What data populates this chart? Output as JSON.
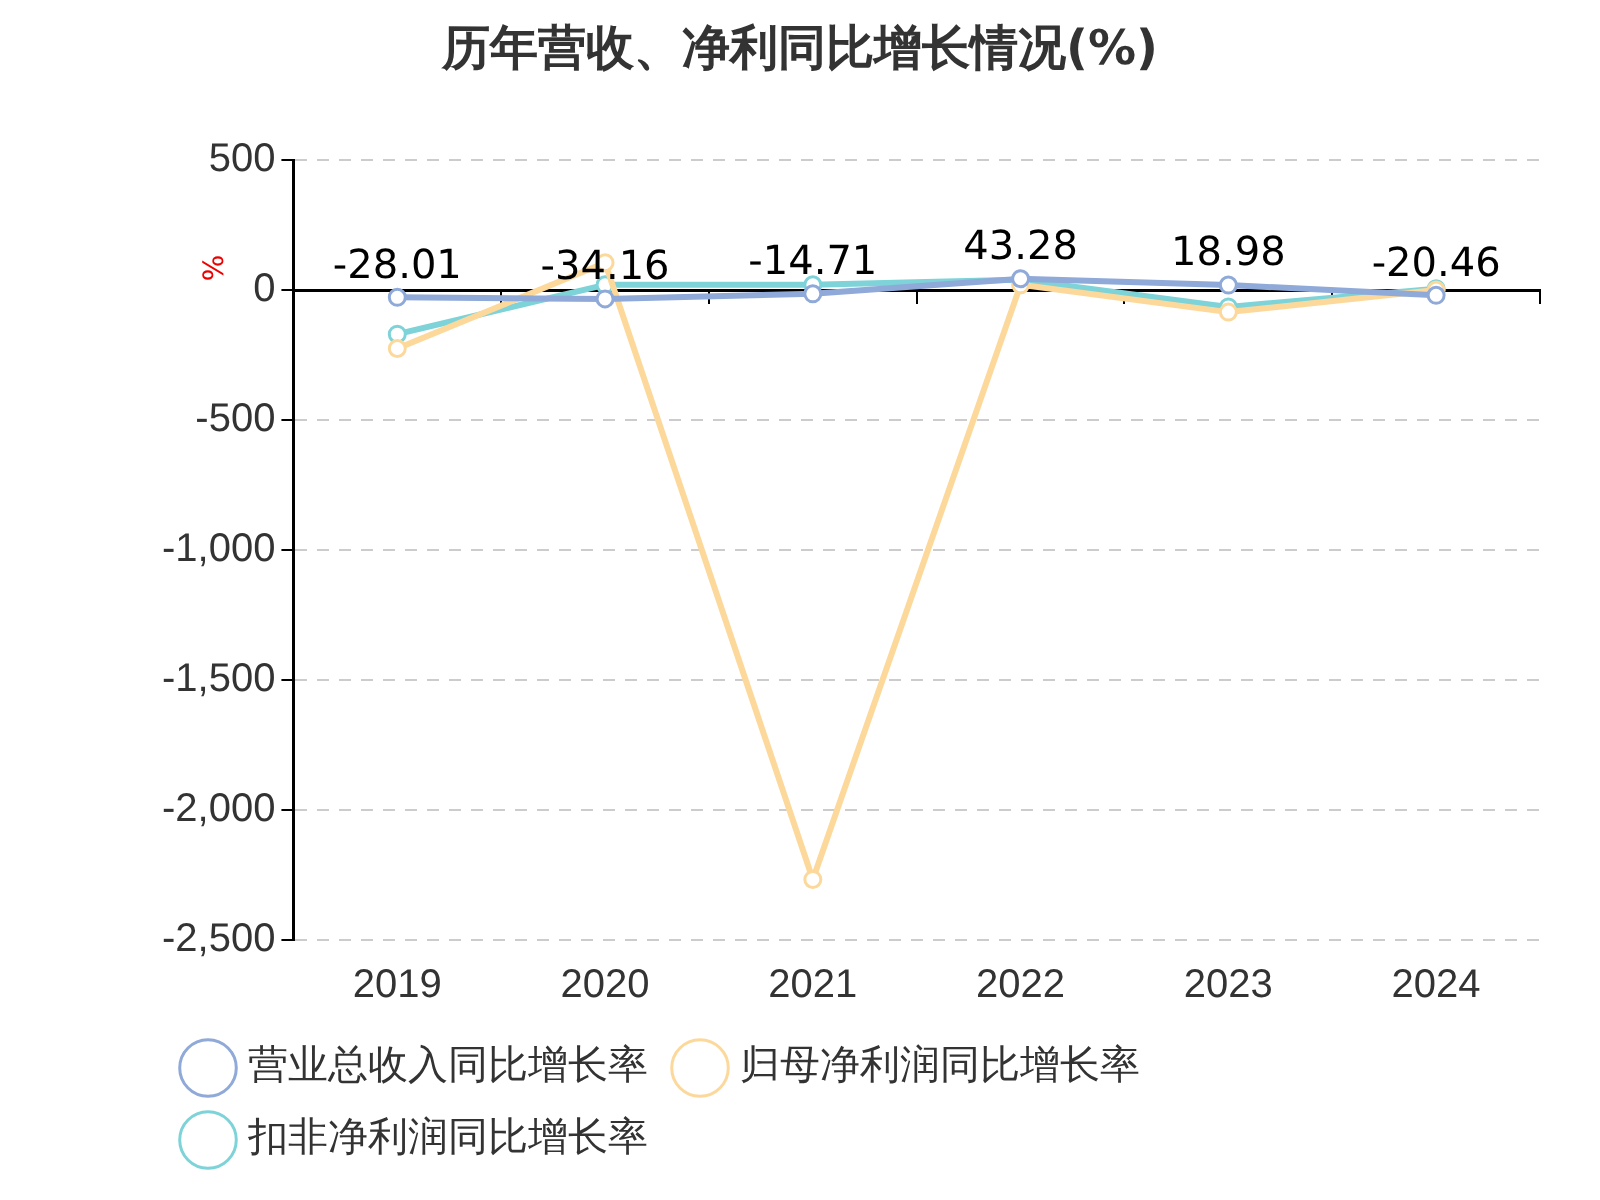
{
  "chart_data": {
    "type": "line",
    "title": "历年营收、净利同比增长情况(%)",
    "ylabel": "%",
    "categories": [
      "2019",
      "2020",
      "2021",
      "2022",
      "2023",
      "2024"
    ],
    "series": [
      {
        "name": "营业总收入同比增长率",
        "color": "#8fa9d8",
        "values": [
          -28.01,
          -34.16,
          -14.71,
          43.28,
          18.98,
          -20.46
        ],
        "value_labels": [
          "-28.01",
          "-34.16",
          "-14.71",
          "43.28",
          "18.98",
          "-20.46"
        ]
      },
      {
        "name": "归母净利润同比增长率",
        "color": "#fdd89b",
        "values": [
          -225,
          105,
          -2267,
          20,
          -85,
          0
        ]
      },
      {
        "name": "扣非净利润同比增长率",
        "color": "#7dd3d8",
        "values": [
          -170,
          20,
          20,
          40,
          -65,
          5
        ]
      }
    ],
    "ylim": [
      -2500,
      500
    ],
    "yticks": [
      {
        "value": 500,
        "label": "500"
      },
      {
        "value": 0,
        "label": "0"
      },
      {
        "value": -500,
        "label": "-500"
      },
      {
        "value": -1000,
        "label": "-1,000"
      },
      {
        "value": -1500,
        "label": "-1,500"
      },
      {
        "value": -2000,
        "label": "-2,000"
      },
      {
        "value": -2500,
        "label": "-2,500"
      }
    ],
    "grid": "y",
    "legend": "bottom",
    "marker": "circle",
    "line_style": "solid"
  }
}
